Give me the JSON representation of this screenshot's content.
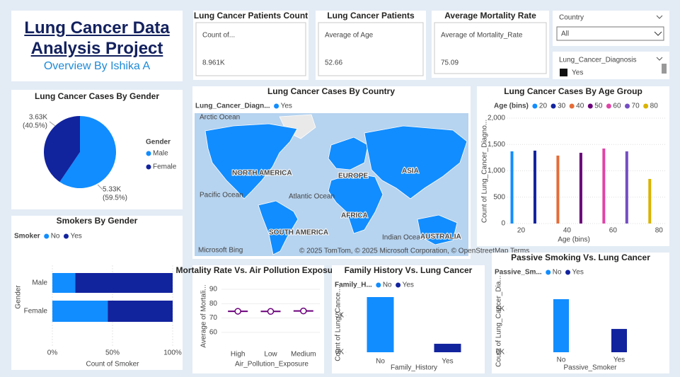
{
  "header": {
    "title": "Lung Cancer Data Analysis Project",
    "subtitle": "Overview By Ishika A"
  },
  "cards": [
    {
      "title": "Lung Cancer Patients Count",
      "label": "Count of...",
      "value": "8.961K"
    },
    {
      "title": "Lung Cancer Patients",
      "label": "Average of Age",
      "value": "52.66"
    },
    {
      "title": "Average Mortality Rate",
      "label": "Average of Mortality_Rate",
      "value": "75.09"
    }
  ],
  "slicers": [
    {
      "title": "Country",
      "selection": "All"
    },
    {
      "title": "Lung_Cancer_Diagnosis",
      "selection": "Yes"
    }
  ],
  "map": {
    "title": "Lung Cancer Cases By Country",
    "legend_title": "Lung_Cancer_Diagn...",
    "legend_items": [
      "Yes"
    ],
    "color": "#118DFF",
    "labels": [
      "Arctic Ocean",
      "NORTH AMERICA",
      "EUROPE",
      "ASIA",
      "Pacific Ocean",
      "Atlantic Ocean",
      "AFRICA",
      "SOUTH AMERICA",
      "Indian Ocean",
      "AUSTRALIA"
    ],
    "logo": "Microsoft Bing",
    "attribution": "© 2025 TomTom, © 2025 Microsoft Corporation, © OpenStreetMap  Terms"
  },
  "chart_data": [
    {
      "type": "pie",
      "title": "Lung Cancer Cases By Gender",
      "legend_title": "Gender",
      "categories": [
        "Male",
        "Female"
      ],
      "values": [
        5330,
        3630
      ],
      "value_labels": [
        "5.33K",
        "3.63K"
      ],
      "percent_labels": [
        "(59.5%)",
        "(40.5%)"
      ],
      "colors": [
        "#118DFF",
        "#12239E"
      ]
    },
    {
      "type": "hbar-stacked",
      "title": "Smokers By Gender",
      "legend_title": "Smoker",
      "categories": [
        "Male",
        "Female"
      ],
      "series": [
        {
          "name": "No",
          "color": "#118DFF",
          "values": [
            19,
            46
          ]
        },
        {
          "name": "Yes",
          "color": "#12239E",
          "values": [
            81,
            54
          ]
        }
      ],
      "xlim": [
        0,
        100
      ],
      "xticks": [
        {
          "value": 0,
          "label": "0%"
        },
        {
          "value": 50,
          "label": "50%"
        },
        {
          "value": 100,
          "label": "100%"
        }
      ],
      "x_label": "Count of Smoker",
      "y_label": "Gender"
    },
    {
      "type": "histogram-columns",
      "title": "Lung Cancer Cases By Age Group",
      "legend_title": "Age (bins)",
      "categories": [
        "20",
        "30",
        "40",
        "50",
        "60",
        "70",
        "80"
      ],
      "x": [
        16,
        26,
        36,
        46,
        56,
        66,
        76
      ],
      "values": [
        1369,
        1383,
        1289,
        1342,
        1423,
        1369,
        846
      ],
      "colors": [
        "#118DFF",
        "#12239E",
        "#E66C37",
        "#6B007B",
        "#E044A7",
        "#744EC2",
        "#D9B300"
      ],
      "xlim": [
        14,
        83
      ],
      "xticks": [
        20,
        40,
        60,
        80
      ],
      "ylim": [
        0,
        2000
      ],
      "yticks": [
        0,
        500,
        {
          "value": 1000,
          "label": "1,000"
        },
        {
          "value": 1500,
          "label": "1,500"
        },
        {
          "value": 2000,
          "label": "2,000"
        }
      ],
      "x_label": "Age (bins)",
      "y_label": "Count of Lung_Cancer_Diagno...",
      "grid": true
    },
    {
      "type": "line",
      "title": "Mortality Rate Vs. Air Pollution Exposure",
      "categories": [
        "High",
        "Low",
        "Medium"
      ],
      "values": [
        74.7,
        74.6,
        74.9
      ],
      "color": "#6B007B",
      "ylim": [
        55,
        92
      ],
      "yticks": [
        60,
        70,
        80,
        90
      ],
      "x_label": "Air_Pollution_Exposure",
      "y_label": "Average of Mortali...",
      "grid": true
    },
    {
      "type": "column",
      "title": "Family History Vs. Lung Cancer",
      "legend_title": "Family_H...",
      "categories": [
        "No",
        "Yes"
      ],
      "series": [
        {
          "name": "No",
          "color": "#118DFF",
          "values": [
            7500,
            null
          ]
        },
        {
          "name": "Yes",
          "color": "#12239E",
          "values": [
            null,
            1150
          ]
        }
      ],
      "ylim": [
        0,
        7700
      ],
      "yticks": [
        {
          "value": 0,
          "label": "0K"
        },
        {
          "value": 5000,
          "label": "5K"
        }
      ],
      "x_label": "Family_History",
      "y_label": "Count of Lung_Cance..."
    },
    {
      "type": "column",
      "title": "Passive Smoking Vs. Lung Cancer",
      "legend_title": "Passive_Sm...",
      "categories": [
        "No",
        "Yes"
      ],
      "series": [
        {
          "name": "No",
          "color": "#118DFF",
          "values": [
            6150,
            null
          ]
        },
        {
          "name": "Yes",
          "color": "#12239E",
          "values": [
            null,
            2700
          ]
        }
      ],
      "ylim": [
        0,
        7200
      ],
      "yticks": [
        {
          "value": 0,
          "label": "0K"
        },
        {
          "value": 5000,
          "label": "5K"
        }
      ],
      "x_label": "Passive_Smoker",
      "y_label": "Count of Lung_Cancer_Dia..."
    }
  ]
}
